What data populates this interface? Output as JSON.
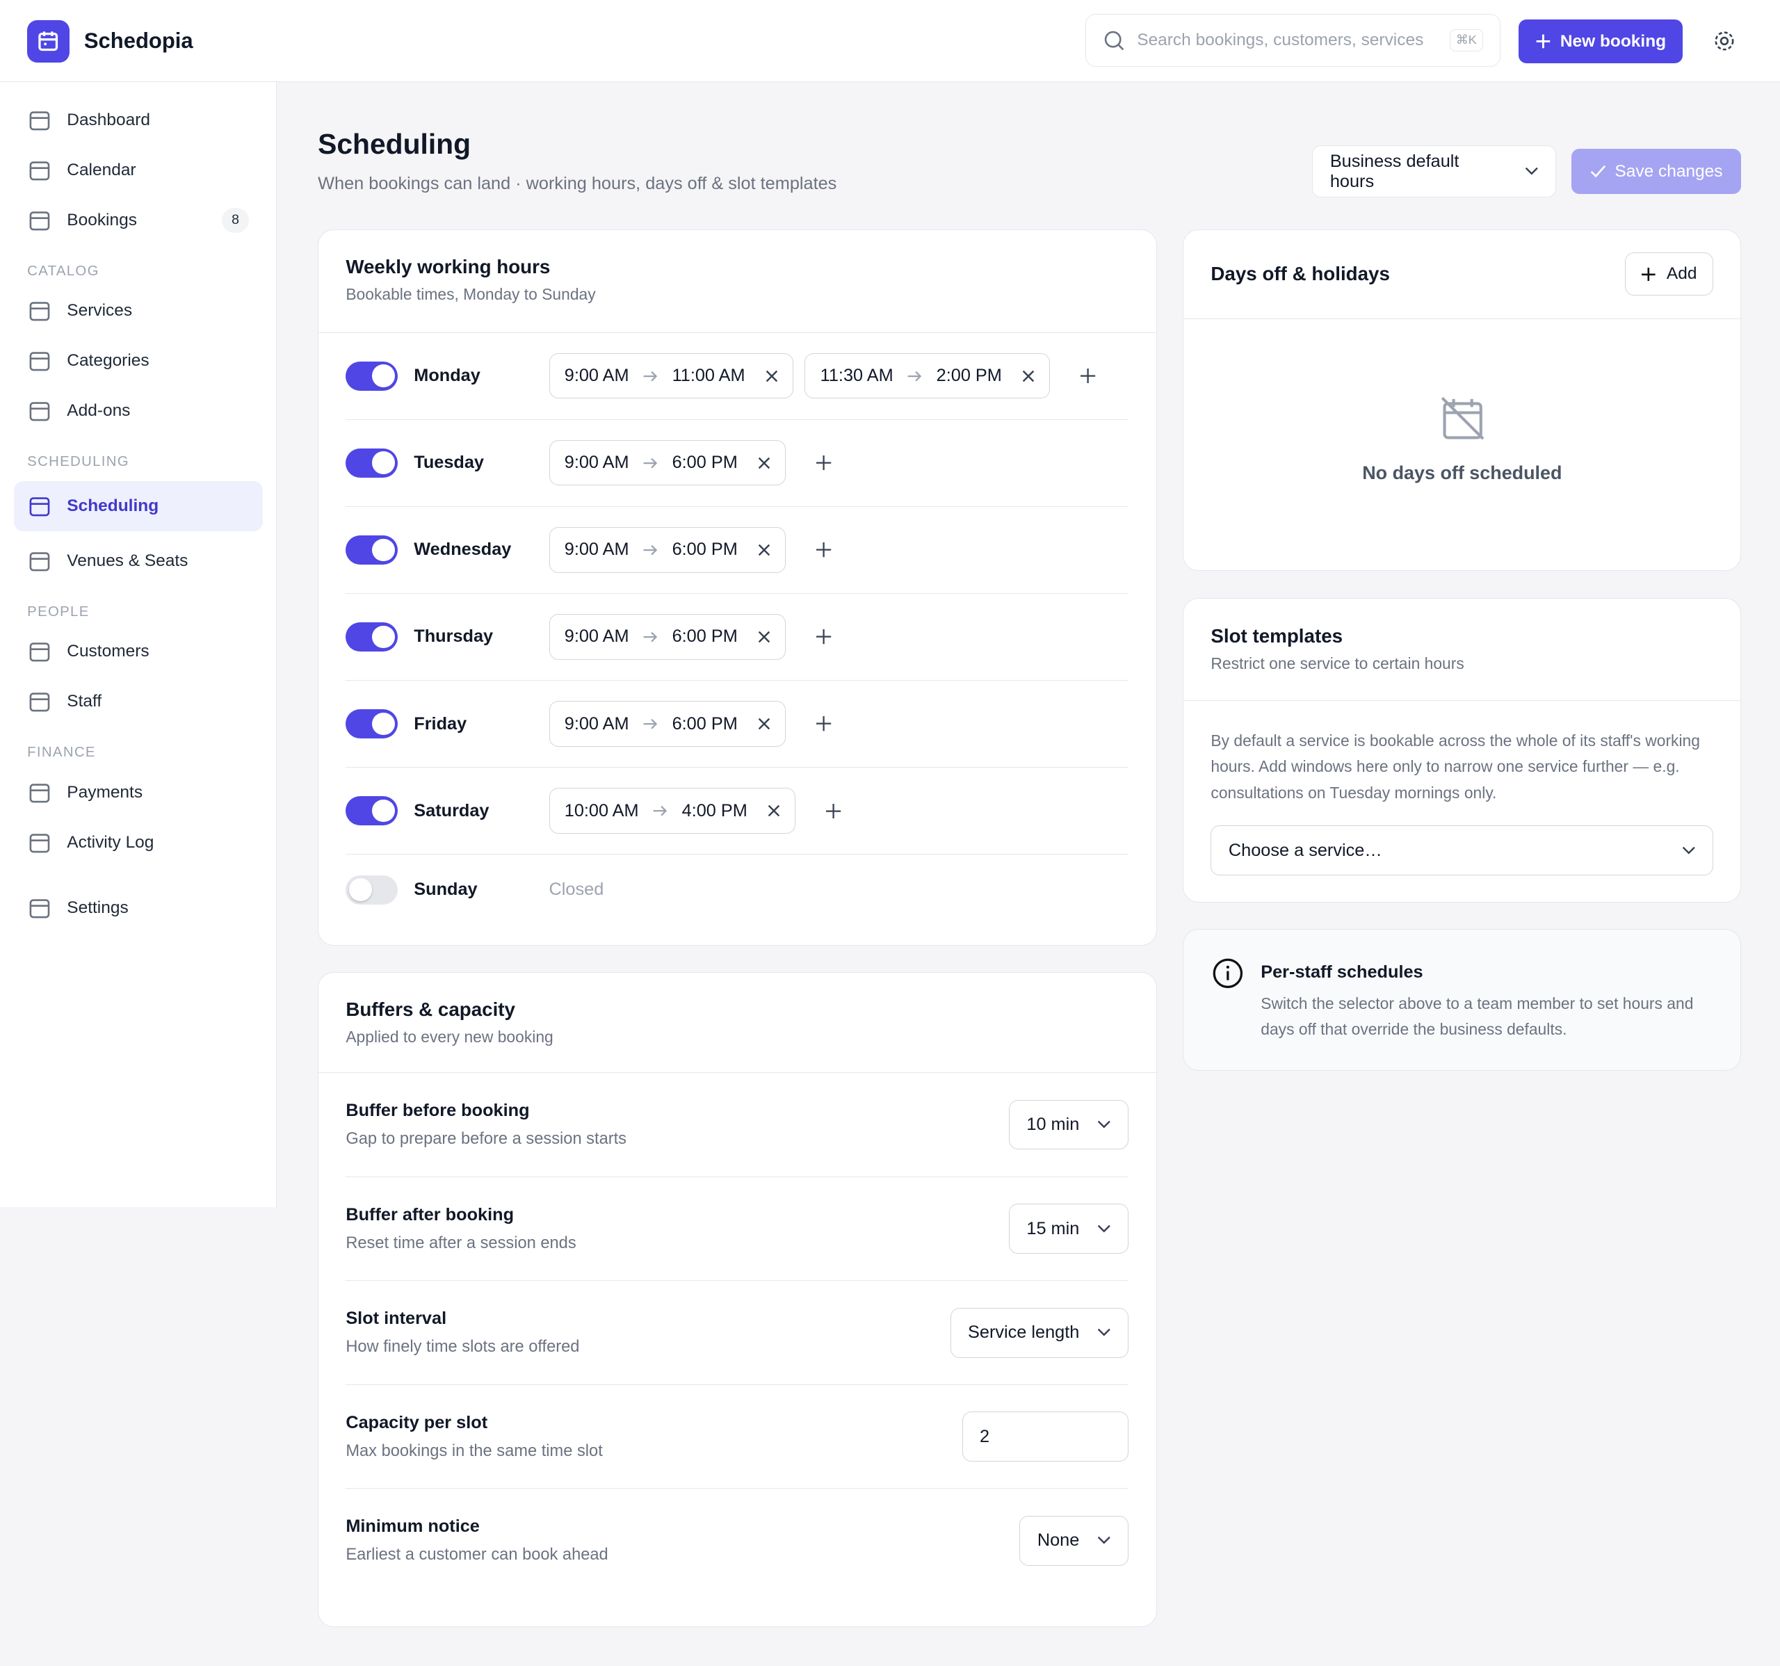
{
  "header": {
    "brand": "Schedopia",
    "search_placeholder": "Search bookings, customers, services",
    "shortcut": "⌘K",
    "new_booking": "New booking"
  },
  "sidebar": {
    "groups": [
      {
        "title": null,
        "items": [
          {
            "label": "Dashboard"
          },
          {
            "label": "Calendar"
          },
          {
            "label": "Bookings",
            "badge": "8"
          }
        ]
      },
      {
        "title": "CATALOG",
        "items": [
          {
            "label": "Services"
          },
          {
            "label": "Categories"
          },
          {
            "label": "Add-ons"
          }
        ]
      },
      {
        "title": "SCHEDULING",
        "items": [
          {
            "label": "Scheduling",
            "active": true
          },
          {
            "label": "Venues & Seats"
          }
        ]
      },
      {
        "title": "PEOPLE",
        "items": [
          {
            "label": "Customers"
          },
          {
            "label": "Staff"
          }
        ]
      },
      {
        "title": "FINANCE",
        "items": [
          {
            "label": "Payments"
          },
          {
            "label": "Activity Log"
          }
        ]
      },
      {
        "title": null,
        "items": [
          {
            "label": "Settings"
          }
        ]
      }
    ]
  },
  "page": {
    "title": "Scheduling",
    "subtitle": "When bookings can land · working hours, days off & slot templates",
    "selector": "Business default hours",
    "save": "Save changes"
  },
  "weekly": {
    "title": "Weekly working hours",
    "subtitle": "Bookable times, Monday to Sunday",
    "closed_label": "Closed",
    "days": [
      {
        "name": "Monday",
        "enabled": true,
        "ranges": [
          {
            "start": "9:00 AM",
            "end": "11:00 AM"
          },
          {
            "start": "11:30 AM",
            "end": "2:00 PM"
          }
        ]
      },
      {
        "name": "Tuesday",
        "enabled": true,
        "ranges": [
          {
            "start": "9:00 AM",
            "end": "6:00 PM"
          }
        ]
      },
      {
        "name": "Wednesday",
        "enabled": true,
        "ranges": [
          {
            "start": "9:00 AM",
            "end": "6:00 PM"
          }
        ]
      },
      {
        "name": "Thursday",
        "enabled": true,
        "ranges": [
          {
            "start": "9:00 AM",
            "end": "6:00 PM"
          }
        ]
      },
      {
        "name": "Friday",
        "enabled": true,
        "ranges": [
          {
            "start": "9:00 AM",
            "end": "6:00 PM"
          }
        ]
      },
      {
        "name": "Saturday",
        "enabled": true,
        "ranges": [
          {
            "start": "10:00 AM",
            "end": "4:00 PM"
          }
        ]
      },
      {
        "name": "Sunday",
        "enabled": false,
        "ranges": []
      }
    ]
  },
  "buffers": {
    "title": "Buffers & capacity",
    "subtitle": "Applied to every new booking",
    "rows": [
      {
        "label": "Buffer before booking",
        "help": "Gap to prepare before a session starts",
        "value": "10 min",
        "control": "select"
      },
      {
        "label": "Buffer after booking",
        "help": "Reset time after a session ends",
        "value": "15 min",
        "control": "select"
      },
      {
        "label": "Slot interval",
        "help": "How finely time slots are offered",
        "value": "Service length",
        "control": "select"
      },
      {
        "label": "Capacity per slot",
        "help": "Max bookings in the same time slot",
        "value": "2",
        "control": "input"
      },
      {
        "label": "Minimum notice",
        "help": "Earliest a customer can book ahead",
        "value": "None",
        "control": "select"
      }
    ]
  },
  "days_off": {
    "title": "Days off & holidays",
    "add": "Add",
    "empty": "No days off scheduled"
  },
  "slot_templates": {
    "title": "Slot templates",
    "subtitle": "Restrict one service to certain hours",
    "body": "By default a service is bookable across the whole of its staff's working hours. Add windows here only to narrow one service further — e.g. consultations on Tuesday mornings only.",
    "select": "Choose a service…"
  },
  "info": {
    "title": "Per-staff schedules",
    "body": "Switch the selector above to a team member to set hours and days off that override the business defaults."
  }
}
